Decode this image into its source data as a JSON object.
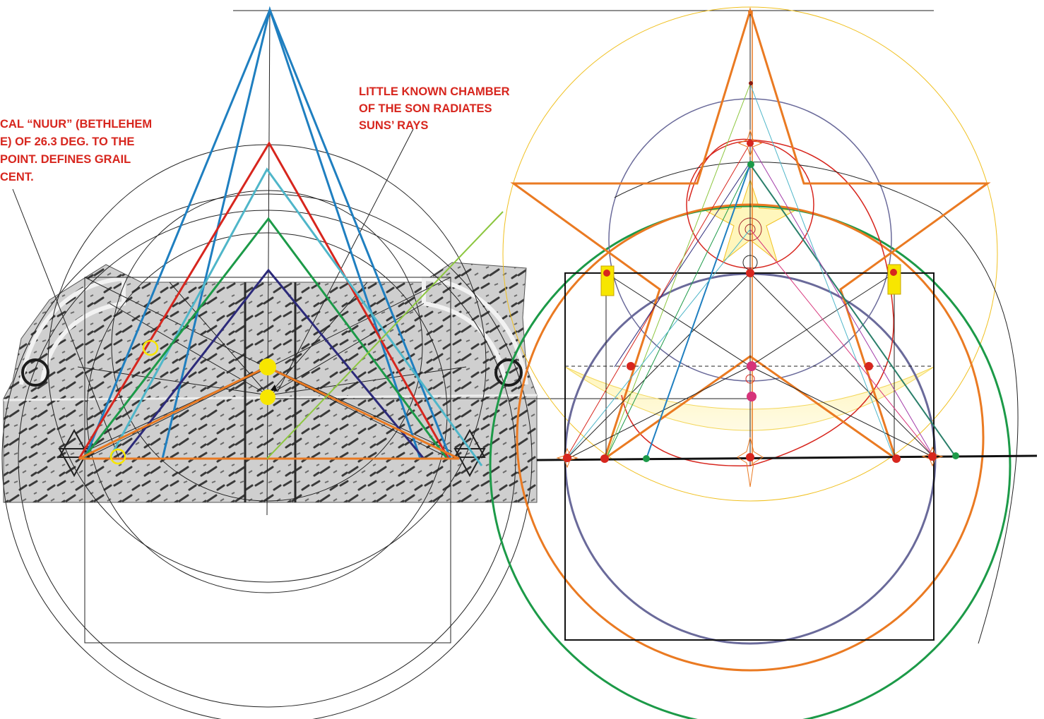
{
  "annotations": {
    "left_note": {
      "lines": [
        "CAL “NUUR” (BETHLEHEM",
        "E) OF 26.3 DEG. TO THE",
        "POINT. DEFINES GRAIL",
        "CENT."
      ]
    },
    "chamber_note": {
      "lines": [
        "LITTLE KNOWN CHAMBER",
        "OF THE SON RADIATES",
        "SUNS’ RAYS"
      ]
    }
  },
  "colors": {
    "label": "#d7261e",
    "blue": "#1f7fc0",
    "red": "#d7261e",
    "cyan": "#4fb6c9",
    "green": "#1c9a48",
    "navy": "#2c2a7a",
    "orange": "#ea7a22",
    "yellow": "#f7e600",
    "lime": "#8cc63f",
    "gold": "#f0c020",
    "purple": "#6a6a9a",
    "magenta": "#d6337a"
  }
}
